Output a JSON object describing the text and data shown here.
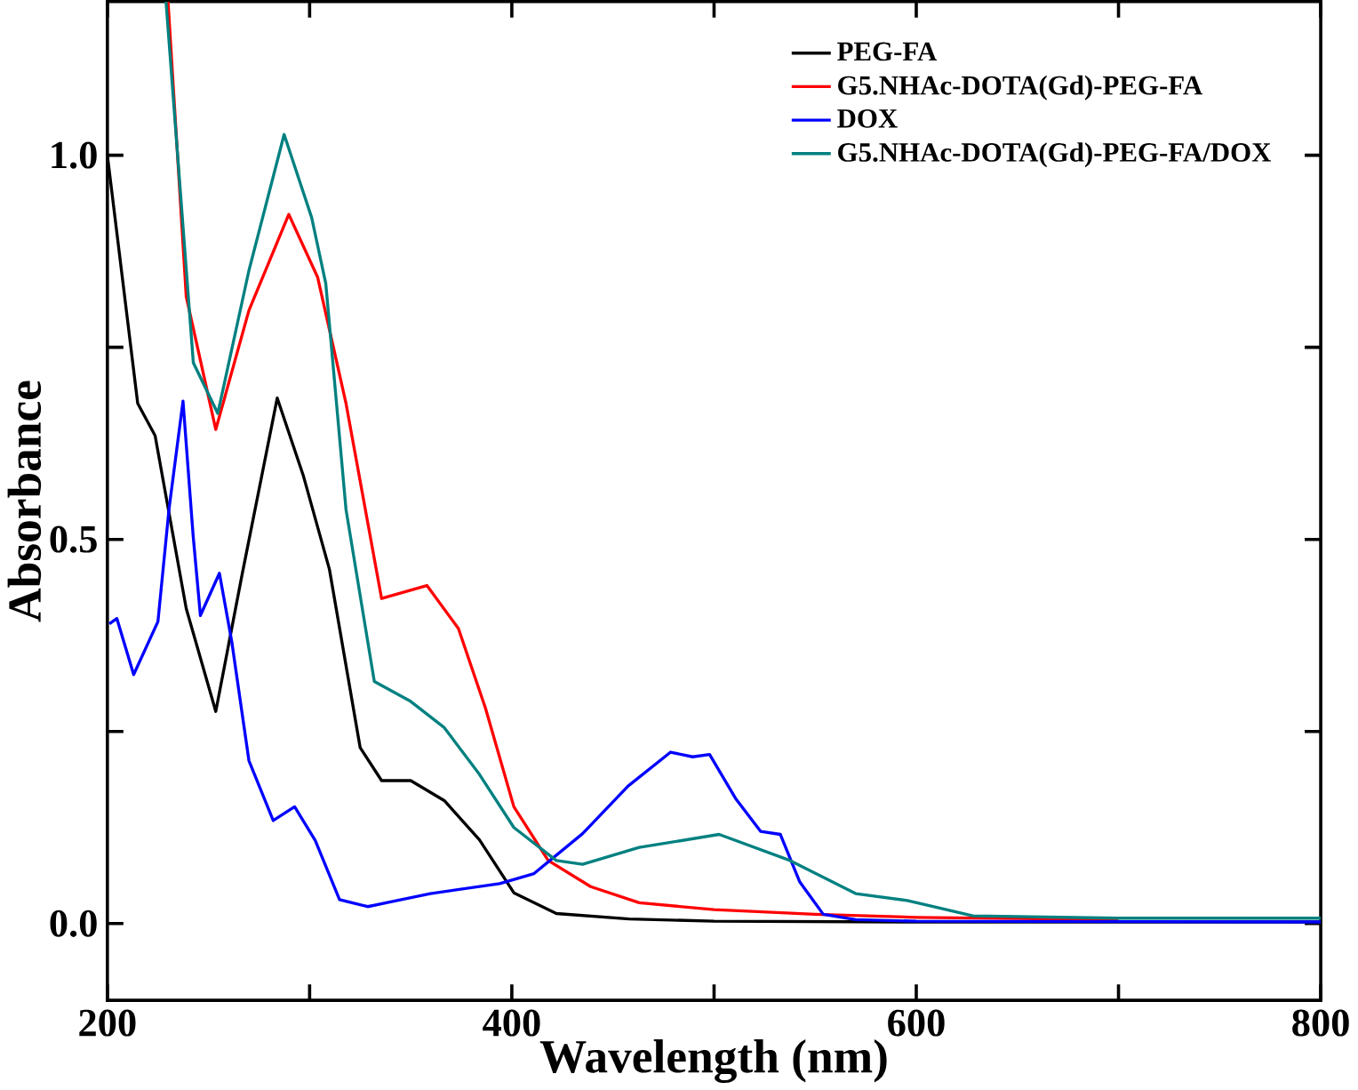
{
  "chart_data": {
    "type": "line",
    "xlabel": "Wavelength (nm)",
    "ylabel": "Absorbance",
    "xlim": [
      200,
      800
    ],
    "ylim": [
      -0.1,
      1.2
    ],
    "xticks": [
      200,
      {
        "value": 300,
        "label": null
      },
      400,
      {
        "value": 500,
        "label": null
      },
      600,
      {
        "value": 700,
        "label": null
      },
      800
    ],
    "yticks": [
      {
        "value": 0,
        "label": "0.0"
      },
      {
        "value": 0.25,
        "label": null
      },
      {
        "value": 0.5,
        "label": "0.5"
      },
      {
        "value": 0.75,
        "label": null
      },
      {
        "value": 1,
        "label": "1.0"
      }
    ],
    "legend": "top right",
    "marker": "none",
    "line_style": "solid",
    "grid": false,
    "series": [
      {
        "name": "PEG-FA",
        "color": "#000000",
        "x": [
          200,
          215,
          223.6,
          239,
          253.6,
          266.6,
          284,
          297,
          309.8,
          325,
          335.6,
          350,
          366.6,
          384,
          401,
          422,
          458,
          500,
          600,
          800
        ],
        "values": [
          1.0,
          0.677,
          0.635,
          0.41,
          0.276,
          0.454,
          0.684,
          0.582,
          0.461,
          0.229,
          0.186,
          0.186,
          0.16,
          0.109,
          0.04,
          0.013,
          0.006,
          0.003,
          0.002,
          0.002
        ]
      },
      {
        "name": "G5.NHAc-DOTA(Gd)-PEG-FA",
        "color": "#ff0000",
        "x": [
          230,
          239,
          253.6,
          270,
          289.7,
          304,
          318,
          335.6,
          358,
          373.6,
          387,
          401,
          418,
          439,
          463,
          500,
          550,
          600,
          700
        ],
        "values": [
          1.2,
          0.816,
          0.643,
          0.798,
          0.923,
          0.841,
          0.677,
          0.423,
          0.44,
          0.384,
          0.28,
          0.152,
          0.082,
          0.048,
          0.027,
          0.018,
          0.012,
          0.008,
          0.005
        ]
      },
      {
        "name": "DOX",
        "color": "#0000ff",
        "x": [
          201,
          204.7,
          213,
          225,
          230.5,
          237.4,
          242.4,
          246,
          255.4,
          261.5,
          270,
          282,
          292.6,
          302.8,
          314.8,
          328.7,
          359.7,
          394,
          411,
          435,
          457.5,
          478.5,
          489.4,
          497.8,
          510.6,
          523,
          532.8,
          542.4,
          554,
          570,
          600,
          800
        ],
        "values": [
          0.39,
          0.397,
          0.324,
          0.393,
          0.54,
          0.68,
          0.505,
          0.401,
          0.456,
          0.367,
          0.212,
          0.134,
          0.152,
          0.108,
          0.031,
          0.022,
          0.039,
          0.052,
          0.065,
          0.117,
          0.179,
          0.223,
          0.217,
          0.22,
          0.163,
          0.12,
          0.116,
          0.054,
          0.012,
          0.005,
          0.003,
          0.002
        ]
      },
      {
        "name": "G5.NHAc-DOTA(Gd)-PEG-FA/DOX",
        "color": "#008080",
        "x": [
          229,
          242.5,
          254.6,
          270,
          287.4,
          301,
          308,
          318,
          332,
          349.5,
          366.6,
          384,
          401,
          422,
          435,
          463,
          502.5,
          537.6,
          570,
          595.5,
          628,
          700,
          800
        ],
        "values": [
          1.2,
          0.73,
          0.664,
          0.85,
          1.027,
          0.919,
          0.833,
          0.539,
          0.315,
          0.29,
          0.255,
          0.194,
          0.125,
          0.082,
          0.077,
          0.099,
          0.116,
          0.082,
          0.039,
          0.03,
          0.01,
          0.007,
          0.007
        ]
      }
    ]
  }
}
